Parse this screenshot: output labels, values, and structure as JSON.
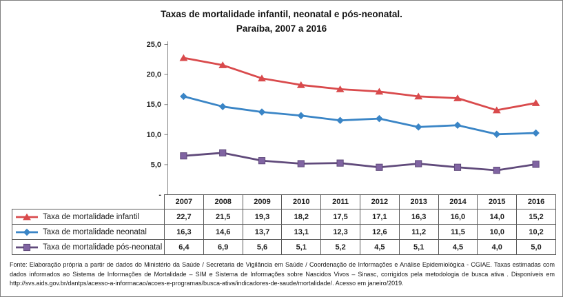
{
  "title": {
    "line1": "Taxas de mortalidade infantil, neonatal e pós-neonatal.",
    "line2": "Paraíba, 2007 a 2016"
  },
  "chart_data": {
    "type": "line",
    "title": "Taxas de mortalidade infantil, neonatal e pós-neonatal. Paraíba, 2007 a 2016",
    "categories": [
      "2007",
      "2008",
      "2009",
      "2010",
      "2011",
      "2012",
      "2013",
      "2014",
      "2015",
      "2016"
    ],
    "series": [
      {
        "name": "Taxa de mortalidade infantil",
        "color": "#D94A4C",
        "marker": "triangle",
        "marker_fill": "#D94A4C",
        "values": [
          22.7,
          21.5,
          19.3,
          18.2,
          17.5,
          17.1,
          16.3,
          16.0,
          14.0,
          15.2
        ]
      },
      {
        "name": "Taxa de mortalidade neonatal",
        "color": "#3A85C6",
        "marker": "diamond",
        "marker_fill": "#3A85C6",
        "values": [
          16.3,
          14.6,
          13.7,
          13.1,
          12.3,
          12.6,
          11.2,
          11.5,
          10.0,
          10.2
        ]
      },
      {
        "name": "Taxa de mortalidade pós-neonatal",
        "color": "#604A7B",
        "marker": "square",
        "marker_fill": "#8064A2",
        "values": [
          6.4,
          6.9,
          5.6,
          5.1,
          5.2,
          4.5,
          5.1,
          4.5,
          4.0,
          5.0
        ]
      }
    ],
    "ylim": [
      0,
      25
    ],
    "ytick_step": 5,
    "yticks": [
      {
        "value": 0,
        "label": "-"
      },
      {
        "value": 5,
        "label": "5,0"
      },
      {
        "value": 10,
        "label": "10,0"
      },
      {
        "value": 15,
        "label": "15,0"
      },
      {
        "value": 20,
        "label": "20,0"
      },
      {
        "value": 25,
        "label": "25,0"
      }
    ],
    "grid": false,
    "legend_position": "data-table-left",
    "decimal_separator": ","
  },
  "footer": {
    "text": "Fonte: Elaboração própria a partir de dados do Ministério da Saúde / Secretaria de Vigilância em Saúde / Coordenação de Informações e Análise Epidemiológica - CGIAE.  Taxas estimadas com dados informados ao Sistema de Informações de Mortalidade – SIM e Sistema de Informações sobre Nascidos Vivos – Sinasc, corrigidos pela metodologia de busca ativa . Disponíveis em http://svs.aids.gov.br/dantps/acesso-a-informacao/acoes-e-programas/busca-ativa/indicadores-de-saude/mortalidade/. Acesso em janeiro/2019."
  }
}
